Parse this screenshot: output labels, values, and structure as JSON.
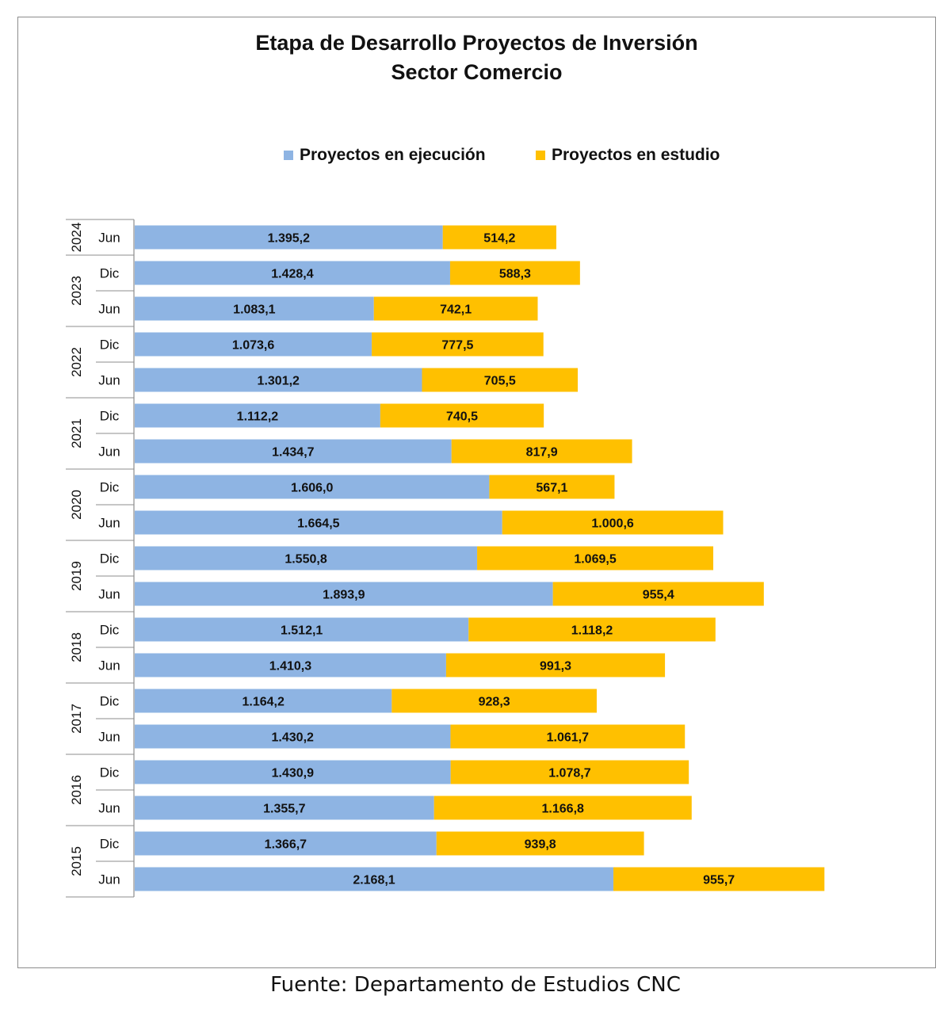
{
  "title_lines": [
    "Etapa de Desarrollo Proyectos de Inversión",
    "Sector Comercio"
  ],
  "source": "Fuente: Departamento de Estudios CNC",
  "colors": {
    "ejecucion": "#8EB4E3",
    "estudio": "#FFC000"
  },
  "chart_data": {
    "type": "bar",
    "orientation": "horizontal",
    "stacked": true,
    "legend_position": "top",
    "grid": false,
    "categories": [
      {
        "year": "2024",
        "period": "Jun"
      },
      {
        "year": "2023",
        "period": "Dic"
      },
      {
        "year": "2023",
        "period": "Jun"
      },
      {
        "year": "2022",
        "period": "Dic"
      },
      {
        "year": "2022",
        "period": "Jun"
      },
      {
        "year": "2021",
        "period": "Dic"
      },
      {
        "year": "2021",
        "period": "Jun"
      },
      {
        "year": "2020",
        "period": "Dic"
      },
      {
        "year": "2020",
        "period": "Jun"
      },
      {
        "year": "2019",
        "period": "Dic"
      },
      {
        "year": "2019",
        "period": "Jun"
      },
      {
        "year": "2018",
        "period": "Dic"
      },
      {
        "year": "2018",
        "period": "Jun"
      },
      {
        "year": "2017",
        "period": "Dic"
      },
      {
        "year": "2017",
        "period": "Jun"
      },
      {
        "year": "2016",
        "period": "Dic"
      },
      {
        "year": "2016",
        "period": "Jun"
      },
      {
        "year": "2015",
        "period": "Dic"
      },
      {
        "year": "2015",
        "period": "Jun"
      }
    ],
    "series": [
      {
        "name": "Proyectos en ejecución",
        "values": [
          1395.2,
          1428.4,
          1083.1,
          1073.6,
          1301.2,
          1112.2,
          1434.7,
          1606.0,
          1664.5,
          1550.8,
          1893.9,
          1512.1,
          1410.3,
          1164.2,
          1430.2,
          1430.9,
          1355.7,
          1366.7,
          2168.1
        ],
        "labels": [
          "1.395,2",
          "1.428,4",
          "1.083,1",
          "1.073,6",
          "1.301,2",
          "1.112,2",
          "1.434,7",
          "1.606,0",
          "1.664,5",
          "1.550,8",
          "1.893,9",
          "1.512,1",
          "1.410,3",
          "1.164,2",
          "1.430,2",
          "1.430,9",
          "1.355,7",
          "1.366,7",
          "2.168,1"
        ]
      },
      {
        "name": "Proyectos en estudio",
        "values": [
          514.2,
          588.3,
          742.1,
          777.5,
          705.5,
          740.5,
          817.9,
          567.1,
          1000.6,
          1069.5,
          955.4,
          1118.2,
          991.3,
          928.3,
          1061.7,
          1078.7,
          1166.8,
          939.8,
          955.7
        ],
        "labels": [
          "514,2",
          "588,3",
          "742,1",
          "777,5",
          "705,5",
          "740,5",
          "817,9",
          "567,1",
          "1.000,6",
          "1.069,5",
          "955,4",
          "1.118,2",
          "991,3",
          "928,3",
          "1.061,7",
          "1.078,7",
          "1.166,8",
          "939,8",
          "955,7"
        ]
      }
    ]
  }
}
